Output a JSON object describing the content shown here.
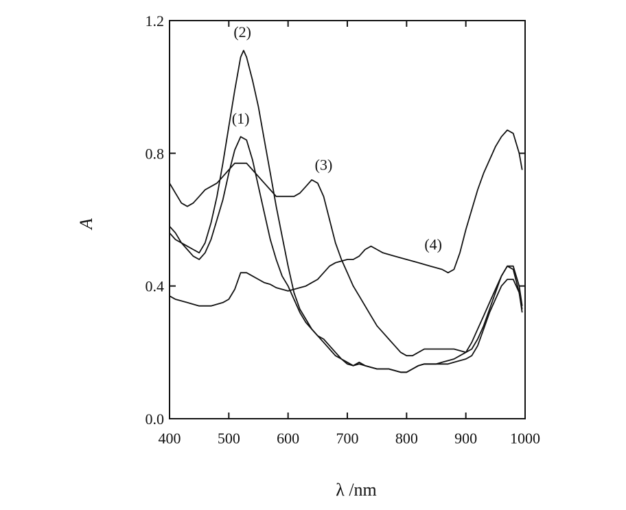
{
  "chart_data": {
    "type": "line",
    "title": "",
    "xlabel": "λ /nm",
    "ylabel": "A",
    "xlim": [
      400,
      1000
    ],
    "ylim": [
      0,
      1.2
    ],
    "x_ticks": [
      400,
      500,
      600,
      700,
      800,
      900,
      1000
    ],
    "x_tick_labels": [
      "400",
      "500",
      "600",
      "700",
      "800",
      "900",
      "1000"
    ],
    "y_ticks": [
      0.0,
      0.4,
      0.8,
      1.2
    ],
    "y_tick_labels": [
      "0.0",
      "0.4",
      "0.8",
      "1.2"
    ],
    "grid": false,
    "legend": "none",
    "line_color": "#111111",
    "series": [
      {
        "name": "(1)",
        "label_at": [
          520,
          0.89
        ],
        "points": [
          [
            400,
            0.58
          ],
          [
            410,
            0.56
          ],
          [
            420,
            0.53
          ],
          [
            430,
            0.51
          ],
          [
            440,
            0.49
          ],
          [
            450,
            0.48
          ],
          [
            460,
            0.5
          ],
          [
            470,
            0.54
          ],
          [
            480,
            0.6
          ],
          [
            490,
            0.66
          ],
          [
            500,
            0.74
          ],
          [
            510,
            0.81
          ],
          [
            520,
            0.85
          ],
          [
            530,
            0.84
          ],
          [
            540,
            0.78
          ],
          [
            550,
            0.7
          ],
          [
            560,
            0.62
          ],
          [
            570,
            0.54
          ],
          [
            580,
            0.48
          ],
          [
            590,
            0.43
          ],
          [
            600,
            0.4
          ],
          [
            610,
            0.36
          ],
          [
            620,
            0.32
          ],
          [
            630,
            0.29
          ],
          [
            640,
            0.27
          ],
          [
            650,
            0.25
          ],
          [
            660,
            0.24
          ],
          [
            670,
            0.22
          ],
          [
            680,
            0.2
          ],
          [
            690,
            0.18
          ],
          [
            700,
            0.165
          ],
          [
            710,
            0.16
          ],
          [
            720,
            0.17
          ],
          [
            730,
            0.16
          ],
          [
            740,
            0.155
          ],
          [
            750,
            0.15
          ],
          [
            760,
            0.15
          ],
          [
            770,
            0.15
          ],
          [
            780,
            0.145
          ],
          [
            790,
            0.14
          ],
          [
            800,
            0.14
          ],
          [
            810,
            0.15
          ],
          [
            820,
            0.16
          ],
          [
            830,
            0.165
          ],
          [
            840,
            0.165
          ],
          [
            850,
            0.165
          ],
          [
            860,
            0.165
          ],
          [
            870,
            0.165
          ],
          [
            880,
            0.17
          ],
          [
            890,
            0.175
          ],
          [
            900,
            0.18
          ],
          [
            910,
            0.19
          ],
          [
            920,
            0.22
          ],
          [
            930,
            0.27
          ],
          [
            940,
            0.32
          ],
          [
            950,
            0.36
          ],
          [
            960,
            0.4
          ],
          [
            970,
            0.42
          ],
          [
            980,
            0.42
          ],
          [
            990,
            0.38
          ],
          [
            995,
            0.32
          ]
        ]
      },
      {
        "name": "(2)",
        "label_at": [
          523,
          1.15
        ],
        "points": [
          [
            400,
            0.56
          ],
          [
            410,
            0.54
          ],
          [
            420,
            0.53
          ],
          [
            430,
            0.52
          ],
          [
            440,
            0.51
          ],
          [
            450,
            0.5
          ],
          [
            460,
            0.53
          ],
          [
            470,
            0.59
          ],
          [
            480,
            0.67
          ],
          [
            490,
            0.77
          ],
          [
            500,
            0.88
          ],
          [
            510,
            0.99
          ],
          [
            520,
            1.09
          ],
          [
            525,
            1.11
          ],
          [
            530,
            1.09
          ],
          [
            540,
            1.02
          ],
          [
            550,
            0.94
          ],
          [
            560,
            0.84
          ],
          [
            570,
            0.74
          ],
          [
            580,
            0.64
          ],
          [
            590,
            0.55
          ],
          [
            600,
            0.46
          ],
          [
            610,
            0.38
          ],
          [
            620,
            0.33
          ],
          [
            630,
            0.3
          ],
          [
            640,
            0.27
          ],
          [
            650,
            0.25
          ],
          [
            660,
            0.23
          ],
          [
            670,
            0.21
          ],
          [
            680,
            0.19
          ],
          [
            690,
            0.18
          ],
          [
            700,
            0.17
          ],
          [
            710,
            0.16
          ],
          [
            720,
            0.165
          ],
          [
            730,
            0.16
          ],
          [
            740,
            0.155
          ],
          [
            750,
            0.15
          ],
          [
            760,
            0.15
          ],
          [
            770,
            0.15
          ],
          [
            780,
            0.145
          ],
          [
            790,
            0.14
          ],
          [
            800,
            0.14
          ],
          [
            810,
            0.15
          ],
          [
            820,
            0.16
          ],
          [
            830,
            0.165
          ],
          [
            840,
            0.165
          ],
          [
            850,
            0.165
          ],
          [
            860,
            0.17
          ],
          [
            870,
            0.175
          ],
          [
            880,
            0.18
          ],
          [
            890,
            0.19
          ],
          [
            900,
            0.2
          ],
          [
            910,
            0.23
          ],
          [
            920,
            0.27
          ],
          [
            930,
            0.31
          ],
          [
            940,
            0.35
          ],
          [
            950,
            0.39
          ],
          [
            960,
            0.43
          ],
          [
            970,
            0.46
          ],
          [
            980,
            0.46
          ],
          [
            990,
            0.4
          ],
          [
            995,
            0.34
          ]
        ]
      },
      {
        "name": "(3)",
        "label_at": [
          660,
          0.75
        ],
        "points": [
          [
            400,
            0.71
          ],
          [
            410,
            0.68
          ],
          [
            420,
            0.65
          ],
          [
            430,
            0.64
          ],
          [
            440,
            0.65
          ],
          [
            450,
            0.67
          ],
          [
            460,
            0.69
          ],
          [
            470,
            0.7
          ],
          [
            480,
            0.71
          ],
          [
            490,
            0.73
          ],
          [
            500,
            0.75
          ],
          [
            510,
            0.77
          ],
          [
            520,
            0.77
          ],
          [
            530,
            0.77
          ],
          [
            540,
            0.75
          ],
          [
            550,
            0.73
          ],
          [
            560,
            0.71
          ],
          [
            570,
            0.69
          ],
          [
            580,
            0.67
          ],
          [
            590,
            0.67
          ],
          [
            600,
            0.67
          ],
          [
            610,
            0.67
          ],
          [
            620,
            0.68
          ],
          [
            630,
            0.7
          ],
          [
            640,
            0.72
          ],
          [
            650,
            0.71
          ],
          [
            660,
            0.67
          ],
          [
            670,
            0.6
          ],
          [
            680,
            0.53
          ],
          [
            690,
            0.48
          ],
          [
            700,
            0.44
          ],
          [
            710,
            0.4
          ],
          [
            720,
            0.37
          ],
          [
            730,
            0.34
          ],
          [
            740,
            0.31
          ],
          [
            750,
            0.28
          ],
          [
            760,
            0.26
          ],
          [
            770,
            0.24
          ],
          [
            780,
            0.22
          ],
          [
            790,
            0.2
          ],
          [
            800,
            0.19
          ],
          [
            810,
            0.19
          ],
          [
            820,
            0.2
          ],
          [
            830,
            0.21
          ],
          [
            840,
            0.21
          ],
          [
            850,
            0.21
          ],
          [
            860,
            0.21
          ],
          [
            870,
            0.21
          ],
          [
            880,
            0.21
          ],
          [
            890,
            0.205
          ],
          [
            900,
            0.2
          ],
          [
            910,
            0.21
          ],
          [
            920,
            0.24
          ],
          [
            930,
            0.28
          ],
          [
            940,
            0.33
          ],
          [
            950,
            0.38
          ],
          [
            960,
            0.43
          ],
          [
            970,
            0.46
          ],
          [
            980,
            0.45
          ],
          [
            990,
            0.38
          ],
          [
            995,
            0.33
          ]
        ]
      },
      {
        "name": "(4)",
        "label_at": [
          845,
          0.51
        ],
        "points": [
          [
            400,
            0.37
          ],
          [
            410,
            0.36
          ],
          [
            420,
            0.355
          ],
          [
            430,
            0.35
          ],
          [
            440,
            0.345
          ],
          [
            450,
            0.34
          ],
          [
            460,
            0.34
          ],
          [
            470,
            0.34
          ],
          [
            480,
            0.345
          ],
          [
            490,
            0.35
          ],
          [
            500,
            0.36
          ],
          [
            510,
            0.39
          ],
          [
            520,
            0.44
          ],
          [
            530,
            0.44
          ],
          [
            540,
            0.43
          ],
          [
            550,
            0.42
          ],
          [
            560,
            0.41
          ],
          [
            570,
            0.405
          ],
          [
            580,
            0.395
          ],
          [
            590,
            0.39
          ],
          [
            600,
            0.385
          ],
          [
            610,
            0.39
          ],
          [
            620,
            0.395
          ],
          [
            630,
            0.4
          ],
          [
            640,
            0.41
          ],
          [
            650,
            0.42
          ],
          [
            660,
            0.44
          ],
          [
            670,
            0.46
          ],
          [
            680,
            0.47
          ],
          [
            690,
            0.475
          ],
          [
            700,
            0.48
          ],
          [
            710,
            0.48
          ],
          [
            720,
            0.49
          ],
          [
            730,
            0.51
          ],
          [
            740,
            0.52
          ],
          [
            750,
            0.51
          ],
          [
            760,
            0.5
          ],
          [
            770,
            0.495
          ],
          [
            780,
            0.49
          ],
          [
            790,
            0.485
          ],
          [
            800,
            0.48
          ],
          [
            810,
            0.475
          ],
          [
            820,
            0.47
          ],
          [
            830,
            0.465
          ],
          [
            840,
            0.46
          ],
          [
            850,
            0.455
          ],
          [
            860,
            0.45
          ],
          [
            870,
            0.44
          ],
          [
            880,
            0.45
          ],
          [
            890,
            0.5
          ],
          [
            900,
            0.57
          ],
          [
            910,
            0.63
          ],
          [
            920,
            0.69
          ],
          [
            930,
            0.74
          ],
          [
            940,
            0.78
          ],
          [
            950,
            0.82
          ],
          [
            960,
            0.85
          ],
          [
            970,
            0.87
          ],
          [
            980,
            0.86
          ],
          [
            990,
            0.8
          ],
          [
            995,
            0.75
          ]
        ]
      }
    ]
  }
}
